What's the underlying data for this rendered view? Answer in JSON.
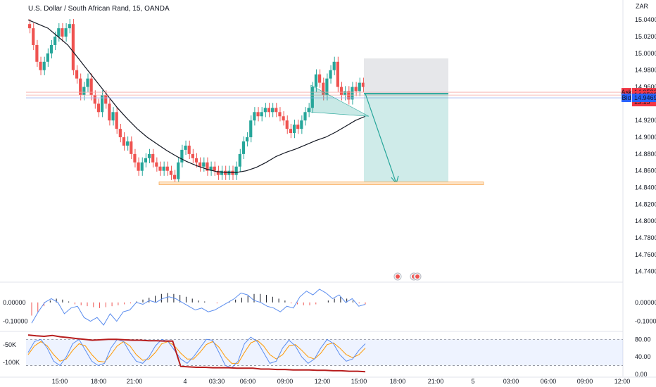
{
  "title": "U.S. Dollar / South African Rand, 15, OANDA",
  "currency": "ZAR",
  "colors": {
    "up": "#26a69a",
    "down": "#ef5350",
    "ma": "#131722",
    "blue": "#2962ff",
    "ask": "#f23645",
    "bid": "#2962ff",
    "target": "#f7a44c"
  },
  "chart_data": [
    {
      "type": "candlestick",
      "title": "U.S. Dollar / South African Rand, 15, OANDA",
      "y_ticks": [
        "15.04000",
        "15.02000",
        "15.00000",
        "14.98000",
        "14.96000",
        "14.94000",
        "14.92000",
        "14.90000",
        "14.88000",
        "14.86000",
        "14.84000",
        "14.82000",
        "14.80000",
        "14.78000",
        "14.76000",
        "14.74000"
      ],
      "ylim": [
        14.728,
        15.062
      ],
      "x_ticks": [
        "15:00",
        "18:00",
        "21:00",
        "4",
        "03:30",
        "06:00",
        "09:00",
        "12:00",
        "15:00",
        "18:00",
        "21:00",
        "5",
        "03:00",
        "06:00",
        "09:00",
        "12:00"
      ],
      "close": [
        15.03,
        15.01,
        14.99,
        14.98,
        14.99,
        15.0,
        15.01,
        15.02,
        15.03,
        15.02,
        15.03,
        15.035,
        14.98,
        14.97,
        14.95,
        14.96,
        14.97,
        14.95,
        14.94,
        14.93,
        14.95,
        14.94,
        14.92,
        14.93,
        14.91,
        14.9,
        14.89,
        14.895,
        14.88,
        14.87,
        14.86,
        14.87,
        14.875,
        14.88,
        14.87,
        14.865,
        14.86,
        14.865,
        14.86,
        14.855,
        14.85,
        14.87,
        14.885,
        14.89,
        14.88,
        14.875,
        14.87,
        14.865,
        14.87,
        14.86,
        14.865,
        14.86,
        14.855,
        14.86,
        14.855,
        14.86,
        14.855,
        14.865,
        14.88,
        14.895,
        14.9,
        14.92,
        14.93,
        14.925,
        14.93,
        14.935,
        14.93,
        14.935,
        14.93,
        14.925,
        14.92,
        14.91,
        14.905,
        14.915,
        14.91,
        14.92,
        14.93,
        14.935,
        14.96,
        14.975,
        14.965,
        14.95,
        14.97,
        14.98,
        14.99,
        14.96,
        14.95,
        14.955,
        14.945,
        14.96,
        14.955,
        14.965,
        14.96
      ],
      "moving_average_close": [
        15.04,
        15.035,
        15.03,
        15.02,
        15.01,
        14.995,
        14.98,
        14.965,
        14.95,
        14.935,
        14.922,
        14.91,
        14.9,
        14.892,
        14.884,
        14.877,
        14.871,
        14.866,
        14.862,
        14.859,
        14.858,
        14.858,
        14.86,
        14.864,
        14.87,
        14.877,
        14.882,
        14.886,
        14.891,
        14.896,
        14.9,
        14.906,
        14.913,
        14.92,
        14.925
      ],
      "ask": "14.95369",
      "last": "14.95031",
      "countdown": "13:15",
      "bid": "14.94699",
      "ask_label": "Ask",
      "bid_label": "Bid",
      "short_position": {
        "entry": 14.952,
        "stop": 14.994,
        "target": 14.845
      },
      "support_level": 14.845
    },
    {
      "type": "bar+line",
      "y_ticks": [
        "0.00000",
        "-0.10000"
      ],
      "ylim": [
        -0.15,
        0.1
      ],
      "histogram": [
        -0.07,
        -0.05,
        -0.02,
        0.01,
        0.02,
        0.015,
        0.005,
        -0.01,
        -0.015,
        -0.02,
        -0.025,
        -0.03,
        -0.025,
        -0.02,
        -0.015,
        -0.01,
        -0.005,
        0.005,
        0.015,
        0.025,
        0.035,
        0.045,
        0.05,
        0.045,
        0.04,
        0.03,
        0.02,
        0.01,
        0.005,
        0.0,
        -0.005,
        0.0,
        0.005,
        0.015,
        0.025,
        0.035,
        0.045,
        0.045,
        0.04,
        0.03,
        0.02,
        0.01,
        -0.005,
        -0.01,
        -0.015,
        -0.015,
        -0.01,
        0.0,
        0.01,
        0.02,
        0.03,
        0.02,
        0.01,
        -0.005,
        -0.01
      ],
      "signal": [
        -0.11,
        -0.05,
        0.0,
        0.02,
        0.0,
        -0.06,
        -0.03,
        -0.02,
        -0.08,
        -0.1,
        -0.08,
        -0.12,
        -0.06,
        -0.1,
        -0.05,
        -0.04,
        0.0,
        -0.01,
        0.01,
        0.0,
        0.02,
        0.03,
        0.02,
        0.0,
        -0.02,
        -0.04,
        -0.03,
        -0.05,
        -0.04,
        -0.02,
        0.0,
        0.02,
        0.05,
        0.04,
        0.01,
        0.0,
        -0.02,
        -0.03,
        -0.05,
        -0.02,
        -0.03,
        0.03,
        0.06,
        0.04,
        0.07,
        0.05,
        0.02,
        0.04,
        0.0,
        0.02,
        -0.02,
        -0.01
      ]
    },
    {
      "type": "line",
      "y_ticks": [
        "80.00",
        "40.00",
        "0.00"
      ],
      "left_ticks": [
        "-50K",
        "-100K"
      ],
      "ylim": [
        -5,
        95
      ],
      "band": [
        20,
        80
      ],
      "stoch_k": [
        50,
        75,
        80,
        60,
        30,
        20,
        40,
        70,
        80,
        55,
        30,
        20,
        25,
        60,
        80,
        75,
        50,
        30,
        25,
        40,
        65,
        80,
        75,
        55,
        35,
        25,
        40,
        60,
        80,
        78,
        50,
        20,
        15,
        30,
        70,
        85,
        75,
        50,
        25,
        30,
        60,
        78,
        65,
        40,
        25,
        35,
        60,
        80,
        70,
        45,
        30,
        35,
        55,
        70
      ],
      "stoch_d": [
        45,
        65,
        75,
        65,
        45,
        30,
        35,
        55,
        70,
        65,
        45,
        30,
        28,
        45,
        65,
        75,
        65,
        45,
        32,
        35,
        50,
        70,
        75,
        65,
        48,
        35,
        35,
        50,
        68,
        75,
        62,
        40,
        25,
        25,
        50,
        72,
        78,
        65,
        45,
        35,
        45,
        65,
        68,
        55,
        40,
        35,
        48,
        68,
        72,
        60,
        45,
        38,
        45,
        60
      ],
      "thick_line": [
        90,
        88,
        87,
        89,
        86,
        84,
        82,
        80,
        78,
        79,
        80,
        80,
        79,
        78,
        78,
        77,
        77,
        76,
        76,
        18,
        17,
        16,
        16,
        15,
        15,
        15,
        14,
        14,
        14,
        12,
        12,
        11,
        11,
        10,
        10,
        10,
        9,
        9,
        8,
        8,
        7,
        7,
        6
      ]
    }
  ]
}
